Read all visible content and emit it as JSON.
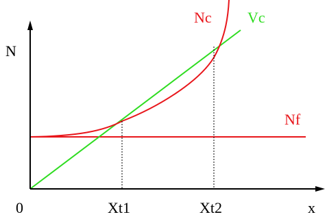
{
  "labels": {
    "y_axis": "N",
    "x_axis": "x",
    "origin": "0",
    "curve_nc": "Nc",
    "line_vc": "Vc",
    "line_nf": "Nf",
    "xt1": "Xt1",
    "xt2": "Xt2"
  },
  "colors": {
    "axis": "#000000",
    "nc": "#e8161b",
    "nf": "#e8161b",
    "vc": "#2edc20",
    "guide": "#000000"
  },
  "icons": {
    "y_arrow": "arrow-up-icon",
    "x_arrow": "arrow-right-icon"
  }
}
